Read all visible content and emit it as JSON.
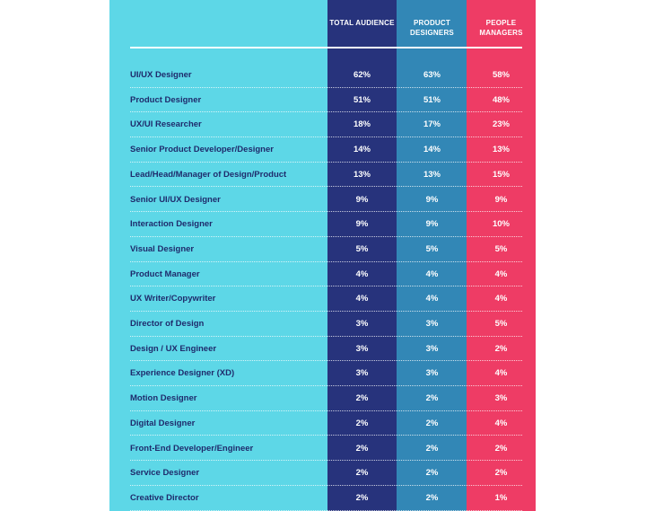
{
  "colors": {
    "label_panel": "#5dd7e7",
    "total_audience": "#27337c",
    "product_designers": "#3287b6",
    "people_managers": "#ee3c65",
    "label_text": "#1f2b6c"
  },
  "headers": [
    "TOTAL AUDIENCE",
    "PRODUCT DESIGNERS",
    "PEOPLE MANAGERS"
  ],
  "rows": [
    {
      "label": "UI/UX Designer",
      "values": [
        "62%",
        "63%",
        "58%"
      ]
    },
    {
      "label": "Product Designer",
      "values": [
        "51%",
        "51%",
        "48%"
      ]
    },
    {
      "label": "UX/UI Researcher",
      "values": [
        "18%",
        "17%",
        "23%"
      ]
    },
    {
      "label": "Senior Product Developer/Designer",
      "values": [
        "14%",
        "14%",
        "13%"
      ]
    },
    {
      "label": "Lead/Head/Manager of Design/Product",
      "values": [
        "13%",
        "13%",
        "15%"
      ]
    },
    {
      "label": "Senior UI/UX Designer",
      "values": [
        "9%",
        "9%",
        "9%"
      ]
    },
    {
      "label": "Interaction Designer",
      "values": [
        "9%",
        "9%",
        "10%"
      ]
    },
    {
      "label": "Visual Designer",
      "values": [
        "5%",
        "5%",
        "5%"
      ]
    },
    {
      "label": "Product Manager",
      "values": [
        "4%",
        "4%",
        "4%"
      ]
    },
    {
      "label": "UX Writer/Copywriter",
      "values": [
        "4%",
        "4%",
        "4%"
      ]
    },
    {
      "label": "Director of Design",
      "values": [
        "3%",
        "3%",
        "5%"
      ]
    },
    {
      "label": "Design / UX Engineer",
      "values": [
        "3%",
        "3%",
        "2%"
      ]
    },
    {
      "label": "Experience Designer (XD)",
      "values": [
        "3%",
        "3%",
        "4%"
      ]
    },
    {
      "label": "Motion Designer",
      "values": [
        "2%",
        "2%",
        "3%"
      ]
    },
    {
      "label": "Digital Designer",
      "values": [
        "2%",
        "2%",
        "4%"
      ]
    },
    {
      "label": "Front-End Developer/Engineer",
      "values": [
        "2%",
        "2%",
        "2%"
      ]
    },
    {
      "label": "Service Designer",
      "values": [
        "2%",
        "2%",
        "2%"
      ]
    },
    {
      "label": "Creative Director",
      "values": [
        "2%",
        "2%",
        "1%"
      ]
    }
  ]
}
